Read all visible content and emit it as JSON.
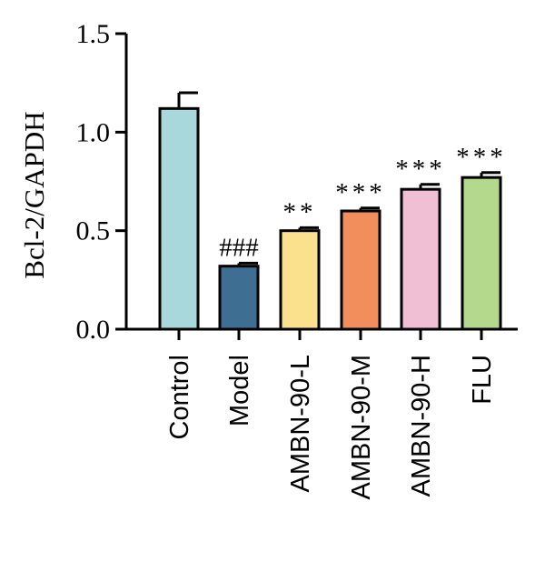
{
  "chart_data": {
    "type": "bar",
    "title": "",
    "xlabel": "",
    "ylabel": "Bcl-2/GAPDH",
    "ylim": [
      0,
      1.5
    ],
    "yticks": [
      "0.0",
      "0.5",
      "1.0",
      "1.5"
    ],
    "grid": false,
    "categories": [
      "Control",
      "Model",
      "AMBN-90-L",
      "AMBN-90-M",
      "AMBN-90-H",
      "FLU"
    ],
    "values": [
      1.12,
      0.32,
      0.5,
      0.6,
      0.71,
      0.77
    ],
    "errors": [
      0.08,
      0.015,
      0.015,
      0.015,
      0.025,
      0.025
    ],
    "annotations": [
      "",
      "###",
      "**",
      "***",
      "***",
      "***"
    ],
    "colors": [
      "#a9d8dc",
      "#3e6f93",
      "#fbe08e",
      "#f28e5b",
      "#f1bfd3",
      "#b4d88c"
    ]
  }
}
